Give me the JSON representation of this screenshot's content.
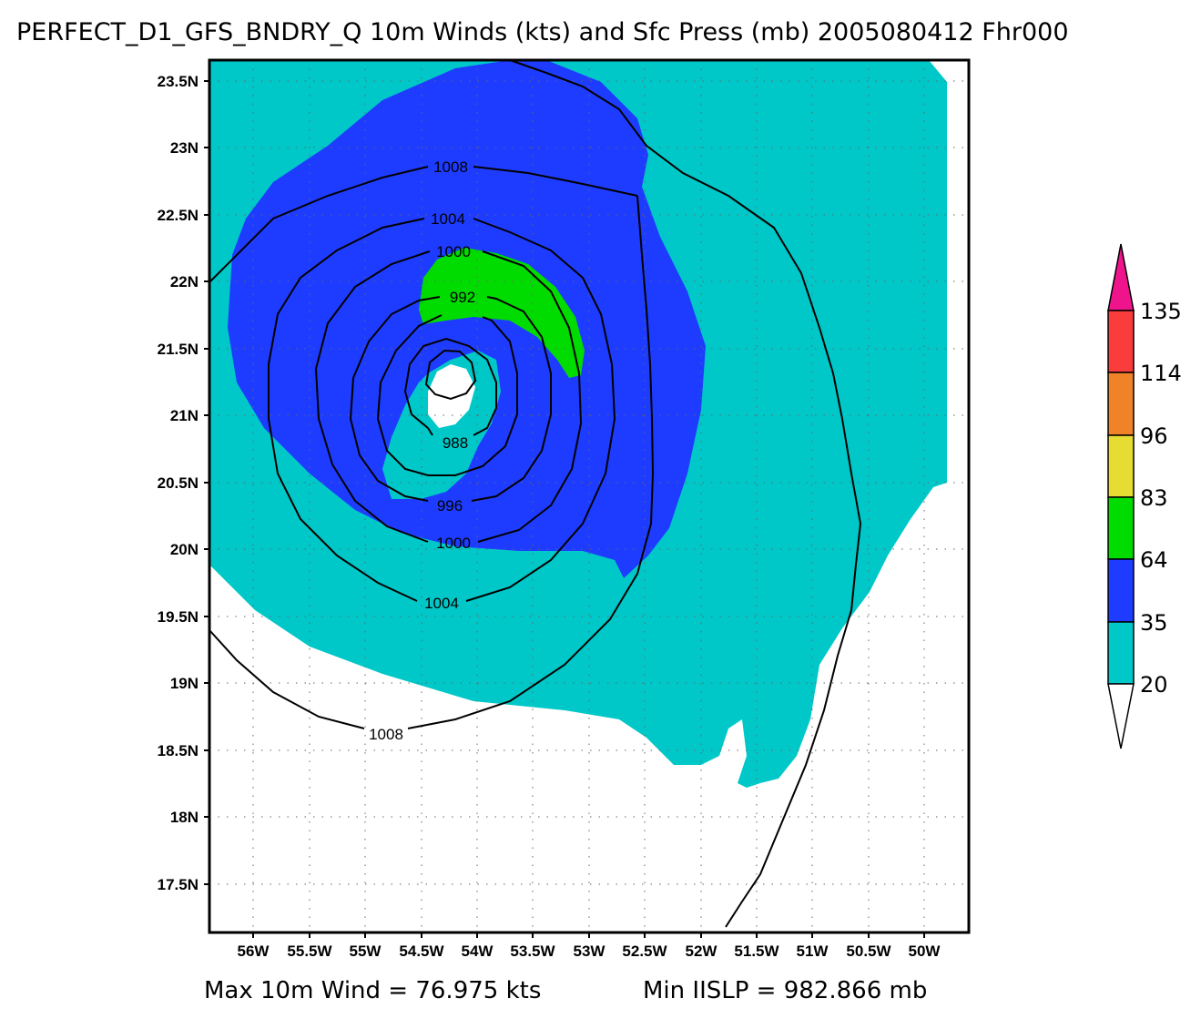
{
  "title": "PERFECT_D1_GFS_BNDRY_Q 10m Winds (kts) and Sfc Press (mb) 2005080412 Fhr000",
  "map": {
    "lon_ticks": [
      "56W",
      "55.5W",
      "55W",
      "54.5W",
      "54W",
      "53.5W",
      "53W",
      "52.5W",
      "52W",
      "51.5W",
      "51W",
      "50.5W",
      "50W"
    ],
    "lat_ticks": [
      "23.5N",
      "23N",
      "22.5N",
      "22N",
      "21.5N",
      "21N",
      "20.5N",
      "20N",
      "19.5N",
      "19N",
      "18.5N",
      "18N",
      "17.5N"
    ],
    "grid": true
  },
  "contours": {
    "unit": "mb",
    "labels": [
      "1008",
      "1004",
      "1000",
      "992",
      "988",
      "996",
      "1000",
      "1004",
      "1008"
    ]
  },
  "legend": {
    "levels": [
      "135",
      "114",
      "96",
      "83",
      "64",
      "35",
      "20"
    ],
    "colors": {
      "20-35": "#00c8c8",
      "35-64": "#1e3cff",
      "64-83": "#00dc00",
      "83-96": "#e6dc32",
      "96-114": "#f08228",
      "114-135": "#fa3c3c",
      "135+": "#f0148c"
    }
  },
  "footer": {
    "max_wind": "Max 10m Wind = 76.975 kts",
    "min_slp": "Min IISLP = 982.866 mb"
  }
}
